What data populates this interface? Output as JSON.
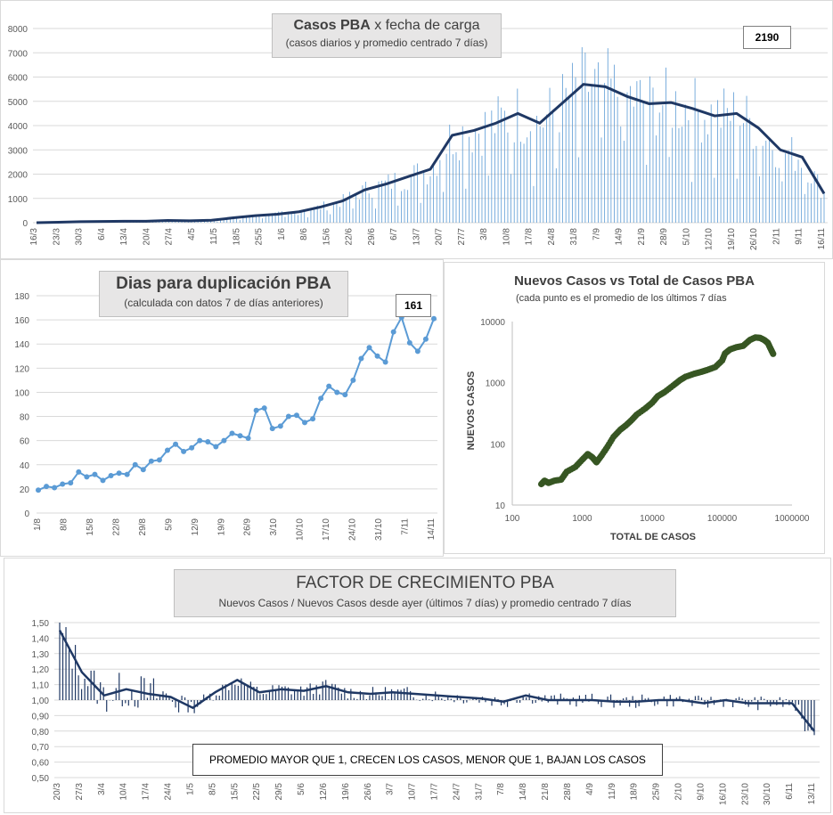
{
  "chart_data": [
    {
      "type": "bar",
      "title": "Casos PBA x fecha de carga",
      "title_bold": "Casos PBA",
      "title_rest": "x fecha de carga",
      "subtitle": "(casos diarios y promedio centrado 7 días)",
      "callout": "2190",
      "ylim": [
        0,
        8000
      ],
      "yticks": [
        0,
        1000,
        2000,
        3000,
        4000,
        5000,
        6000,
        7000,
        8000
      ],
      "xticks": [
        "16/3",
        "23/3",
        "30/3",
        "6/4",
        "13/4",
        "20/4",
        "27/4",
        "4/5",
        "11/5",
        "18/5",
        "25/5",
        "1/6",
        "8/6",
        "15/6",
        "22/6",
        "29/6",
        "6/7",
        "13/7",
        "20/7",
        "27/7",
        "3/8",
        "10/8",
        "17/8",
        "24/8",
        "31/8",
        "7/9",
        "14/9",
        "21/9",
        "28/9",
        "5/10",
        "12/10",
        "19/10",
        "26/10",
        "2/11",
        "9/11",
        "16/11"
      ],
      "series": [
        {
          "name": "casos diarios",
          "kind": "bar"
        },
        {
          "name": "promedio centrado 7 días",
          "kind": "line",
          "weekly_values": [
            0,
            20,
            40,
            50,
            60,
            60,
            90,
            80,
            100,
            200,
            290,
            350,
            450,
            650,
            900,
            1350,
            1600,
            1900,
            2200,
            3600,
            3800,
            4100,
            4500,
            4100,
            4900,
            5700,
            5600,
            5200,
            4900,
            4950,
            4700,
            4400,
            4500,
            3900,
            3000,
            2700,
            1200
          ]
        }
      ]
    },
    {
      "type": "line",
      "title": "Dias para duplicación PBA",
      "subtitle": "(calculada con datos 7 de días anteriores)",
      "callout": "161",
      "ylim": [
        0,
        180
      ],
      "yticks": [
        0,
        20,
        40,
        60,
        80,
        100,
        120,
        140,
        160,
        180
      ],
      "xticks": [
        "1/8",
        "8/8",
        "15/8",
        "22/8",
        "29/8",
        "5/9",
        "12/9",
        "19/9",
        "26/9",
        "3/10",
        "10/10",
        "17/10",
        "24/10",
        "31/10",
        "7/11",
        "14/11"
      ],
      "values": [
        19,
        22,
        21,
        24,
        25,
        34,
        30,
        32,
        27,
        31,
        33,
        32,
        40,
        36,
        43,
        44,
        52,
        57,
        51,
        54,
        60,
        59,
        55,
        60,
        66,
        64,
        62,
        85,
        87,
        70,
        72,
        80,
        81,
        75,
        78,
        95,
        105,
        100,
        98,
        110,
        128,
        137,
        130,
        125,
        150,
        162,
        141,
        134,
        144,
        161
      ]
    },
    {
      "type": "scatter",
      "title": "Nuevos Casos vs Total de Casos PBA",
      "subtitle": "(cada punto es el promedio de los últimos 7 días",
      "xlabel": "TOTAL DE CASOS",
      "ylabel": "NUEVOS CASOS",
      "xscale": "log",
      "yscale": "log",
      "xticks": [
        "100",
        "1000",
        "10000",
        "100000",
        "1000000"
      ],
      "yticks": [
        "10",
        "100",
        "1000",
        "10000"
      ],
      "points": [
        [
          260,
          22
        ],
        [
          290,
          25
        ],
        [
          330,
          23
        ],
        [
          400,
          25
        ],
        [
          500,
          26
        ],
        [
          600,
          35
        ],
        [
          800,
          42
        ],
        [
          1000,
          55
        ],
        [
          1200,
          68
        ],
        [
          1400,
          60
        ],
        [
          1600,
          50
        ],
        [
          1900,
          65
        ],
        [
          2300,
          90
        ],
        [
          2800,
          130
        ],
        [
          3500,
          170
        ],
        [
          4200,
          200
        ],
        [
          5000,
          240
        ],
        [
          6000,
          300
        ],
        [
          8000,
          380
        ],
        [
          10000,
          470
        ],
        [
          12000,
          600
        ],
        [
          15000,
          700
        ],
        [
          20000,
          900
        ],
        [
          25000,
          1100
        ],
        [
          30000,
          1250
        ],
        [
          40000,
          1400
        ],
        [
          50000,
          1500
        ],
        [
          60000,
          1600
        ],
        [
          80000,
          1800
        ],
        [
          100000,
          2300
        ],
        [
          110000,
          3000
        ],
        [
          130000,
          3500
        ],
        [
          160000,
          3800
        ],
        [
          200000,
          4000
        ],
        [
          250000,
          5000
        ],
        [
          300000,
          5500
        ],
        [
          350000,
          5400
        ],
        [
          400000,
          5000
        ],
        [
          450000,
          4500
        ],
        [
          500000,
          3500
        ],
        [
          550000,
          2800
        ]
      ]
    },
    {
      "type": "bar",
      "title": "FACTOR DE CRECIMIENTO PBA",
      "subtitle": "Nuevos Casos  / Nuevos Casos desde ayer (últimos 7 días) y promedio  centrado  7 días",
      "annotation": "PROMEDIO MAYOR QUE 1, CRECEN LOS CASOS, MENOR QUE 1, BAJAN LOS CASOS",
      "ylim": [
        0.5,
        1.5
      ],
      "yticks": [
        "0,50",
        "0,60",
        "0,70",
        "0,80",
        "0,90",
        "1,00",
        "1,10",
        "1,20",
        "1,30",
        "1,40",
        "1,50"
      ],
      "xticks": [
        "20/3",
        "27/3",
        "3/4",
        "10/4",
        "17/4",
        "24/4",
        "1/5",
        "8/5",
        "15/5",
        "22/5",
        "29/5",
        "5/6",
        "12/6",
        "19/6",
        "26/6",
        "3/7",
        "10/7",
        "17/7",
        "24/7",
        "31/7",
        "7/8",
        "14/8",
        "21/8",
        "28/8",
        "4/9",
        "11/9",
        "18/9",
        "25/9",
        "2/10",
        "9/10",
        "16/10",
        "23/10",
        "30/10",
        "6/11",
        "13/11"
      ],
      "series": [
        {
          "name": "factor diario",
          "kind": "bar"
        },
        {
          "name": "promedio centrado 7 días",
          "kind": "line",
          "weekly_values": [
            1.45,
            1.18,
            1.03,
            1.07,
            1.04,
            1.02,
            0.95,
            1.05,
            1.13,
            1.05,
            1.07,
            1.06,
            1.09,
            1.05,
            1.04,
            1.05,
            1.04,
            1.03,
            1.02,
            1.01,
            0.99,
            1.03,
            1.0,
            1.0,
            1.0,
            0.99,
            0.99,
            1.0,
            1.0,
            0.98,
            1.0,
            0.98,
            0.98,
            0.98,
            0.8
          ]
        }
      ]
    }
  ]
}
